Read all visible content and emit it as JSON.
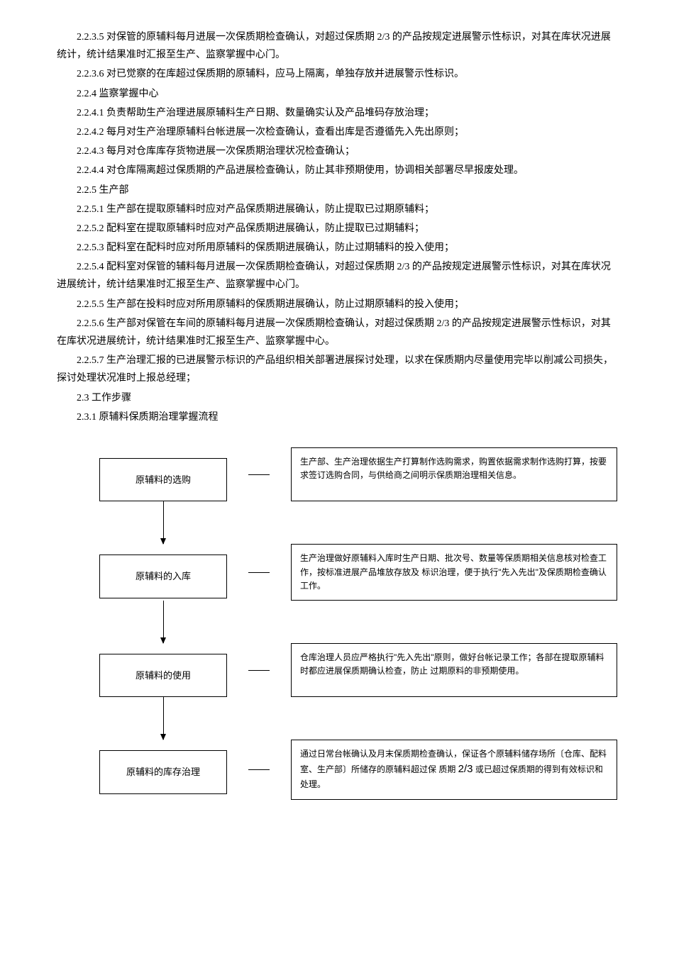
{
  "paragraphs": {
    "p1": "2.2.3.5 对保管的原辅料每月进展一次保质期检查确认，对超过保质期 2/3 的产品按规定进展警示性标识，对其在库状况进展统计，统计结果准时汇报至生产、监察掌握中心门。",
    "p2": "2.2.3.6 对已觉察的在库超过保质期的原辅料，应马上隔离，单独存放并进展警示性标识。",
    "p3": "2.2.4 监察掌握中心",
    "p4": "2.2.4.1 负责帮助生产治理进展原辅料生产日期、数量确实认及产品堆码存放治理；",
    "p5": "2.2.4.2 每月对生产治理原辅料台帐进展一次检查确认，查看出库是否遵循先入先出原则；",
    "p6": "2.2.4.3 每月对仓库库存货物进展一次保质期治理状况检查确认；",
    "p7": "2.2.4.4 对仓库隔离超过保质期的产品进展检查确认，防止其非预期使用，协调相关部署尽早报废处理。",
    "p8": "2.2.5 生产部",
    "p9": "2.2.5.1 生产部在提取原辅料时应对产品保质期进展确认，防止提取已过期原辅料；",
    "p10": "2.2.5.2 配料室在提取原辅料时应对产品保质期进展确认，防止提取已过期辅料；",
    "p11": "2.2.5.3 配料室在配料时应对所用原辅料的保质期进展确认，防止过期辅料的投入使用；",
    "p12": "2.2.5.4 配料室对保管的辅料每月进展一次保质期检查确认，对超过保质期 2/3 的产品按规定进展警示性标识，对其在库状况进展统计，统计结果准时汇报至生产、监察掌握中心门。",
    "p13": "2.2.5.5 生产部在投料时应对所用原辅料的保质期进展确认，防止过期原辅料的投入使用；",
    "p14": "2.2.5.6 生产部对保管在车间的原辅料每月进展一次保质期检查确认，对超过保质期 2/3 的产品按规定进展警示性标识，对其在库状况进展统计，统计结果准时汇报至生产、监察掌握中心。",
    "p15": "2.2.5.7 生产治理汇报的已进展警示标识的产品组织相关部署进展探讨处理，以求在保质期内尽量使用完毕以削减公司损失，探讨处理状况准时上报总经理；",
    "p16": "2.3 工作步骤",
    "p17": "2.3.1 原辅料保质期治理掌握流程"
  },
  "flowchart": {
    "step1": {
      "title": "原辅料的选购",
      "desc": "生产部、生产治理依据生产打算制作选购需求，购置依据需求制作选购打算，按要求签订选购合同，与供给商之间明示保质期治理相关信息。"
    },
    "step2": {
      "title": "原辅料的入库",
      "desc": "生产治理做好原辅料入库时生产日期、批次号、数量等保质期相关信息核对检查工作，按标准进展产品堆放存放及 标识治理，便于执行\"先入先出\"及保质期检查确认工作。"
    },
    "step3": {
      "title": "原辅料的使用",
      "desc": "仓库治理人员应严格执行\"先入先出\"原则，做好台帐记录工作；各部在提取原辅料时都应进展保质期确认检查，防止 过期原料的非预期使用。"
    },
    "step4": {
      "title": "原辅料的库存治理",
      "desc_prefix": "通过日常台帐确认及月末保质期检查确认，保证各个原辅料储存场所〔仓库、配料室、生产部〕所储存的原辅料超过保 质期 ",
      "desc_fraction": "2/3",
      "desc_suffix": " 或已超过保质期的得到有效标识和处理。"
    }
  }
}
